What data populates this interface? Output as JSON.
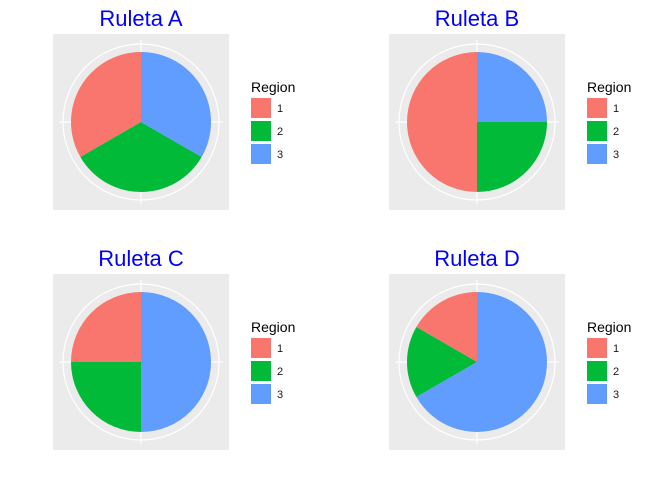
{
  "chart_data": [
    {
      "type": "pie",
      "title": "Ruleta A",
      "categories": [
        "1",
        "2",
        "3"
      ],
      "values": [
        1,
        1,
        1
      ],
      "legend_title": "Region",
      "legend_position": "right"
    },
    {
      "type": "pie",
      "title": "Ruleta B",
      "categories": [
        "1",
        "2",
        "3"
      ],
      "values": [
        2,
        1,
        1
      ],
      "legend_title": "Region",
      "legend_position": "right"
    },
    {
      "type": "pie",
      "title": "Ruleta C",
      "categories": [
        "1",
        "2",
        "3"
      ],
      "values": [
        1,
        1,
        2
      ],
      "legend_title": "Region",
      "legend_position": "right"
    },
    {
      "type": "pie",
      "title": "Ruleta D",
      "categories": [
        "1",
        "2",
        "3"
      ],
      "values": [
        1,
        1,
        4
      ],
      "legend_title": "Region",
      "legend_position": "right"
    }
  ],
  "colors": {
    "region_1": "#F8766D",
    "region_2": "#00BA38",
    "region_3": "#619CFF",
    "title": "#0000FF",
    "panel_background": "#EBEBEB",
    "grid": "#FFFFFF"
  }
}
